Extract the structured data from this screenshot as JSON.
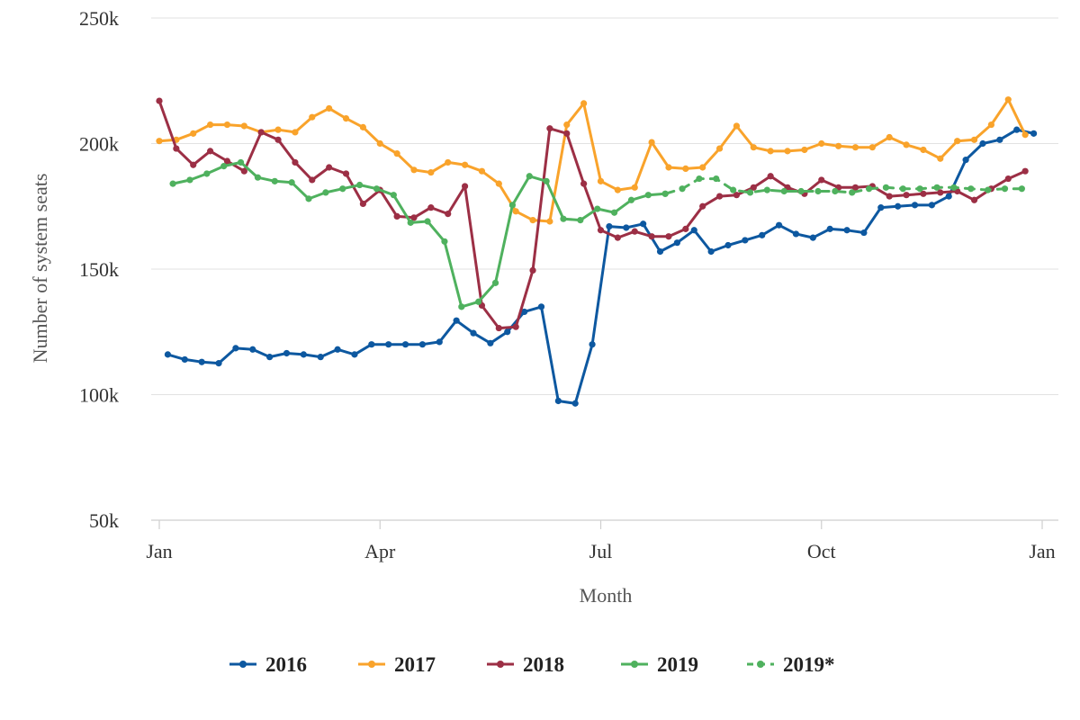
{
  "chart_data": {
    "type": "line",
    "xlabel": "Month",
    "ylabel": "Number of system seats",
    "x_ticks": [
      "Jan",
      "Apr",
      "Jul",
      "Oct",
      "Jan"
    ],
    "y_ticks": [
      "50k",
      "100k",
      "150k",
      "200k",
      "250k"
    ],
    "ylim": [
      50000,
      250000
    ],
    "xlim_weeks": [
      0,
      52
    ],
    "grid": "horizontal",
    "legend_position": "bottom",
    "series": [
      {
        "name": "2016",
        "color": "#0d58a0",
        "style": "solid",
        "x": [
          0.5,
          1.5,
          2.5,
          3.5,
          4.5,
          5.5,
          6.5,
          7.5,
          8.5,
          9.5,
          10.5,
          11.5,
          12.5,
          13.5,
          14.5,
          15.5,
          16.5,
          17.5,
          18.5,
          19.5,
          20.5,
          21.5,
          22.5,
          23.5,
          24.5,
          25.5,
          26.5,
          27.5,
          28.5,
          29.5,
          30.5,
          31.5,
          32.5,
          33.5,
          34.5,
          35.5,
          36.5,
          37.5,
          38.5,
          39.5,
          40.5,
          41.5,
          42.5,
          43.5,
          44.5,
          45.5,
          46.5,
          47.5,
          48.5,
          49.5,
          50.5,
          51.5
        ],
        "values": [
          116000,
          114000,
          113000,
          112500,
          118500,
          118000,
          115000,
          116500,
          116000,
          115000,
          118000,
          116000,
          120000,
          120000,
          120000,
          120000,
          121000,
          129500,
          124500,
          120500,
          125000,
          133000,
          135000,
          97500,
          96500,
          120000,
          167000,
          166500,
          168000,
          157000,
          160500,
          165500,
          157000,
          159500,
          161500,
          163500,
          167500,
          164000,
          162500,
          166000,
          165500,
          164500,
          174500,
          175000,
          175500,
          175500,
          179000,
          193500,
          200000,
          201500,
          205500,
          204000
        ]
      },
      {
        "name": "2017",
        "color": "#f9a32b",
        "style": "solid",
        "x": [
          0,
          1,
          2,
          3,
          4,
          5,
          6,
          7,
          8,
          9,
          10,
          11,
          12,
          13,
          14,
          15,
          16,
          17,
          18,
          19,
          20,
          21,
          22,
          23,
          24,
          25,
          26,
          27,
          28,
          29,
          30,
          31,
          32,
          33,
          34,
          35,
          36,
          37,
          38,
          39,
          40,
          41,
          42,
          43,
          44,
          45,
          46,
          47,
          48,
          49,
          50,
          51
        ],
        "values": [
          201000,
          201500,
          204000,
          207500,
          207500,
          207000,
          204500,
          205500,
          204500,
          210500,
          214000,
          210000,
          206500,
          200000,
          196000,
          189500,
          188500,
          192500,
          191500,
          189000,
          184000,
          173000,
          169500,
          169000,
          207500,
          216000,
          185000,
          181500,
          182500,
          200500,
          190500,
          190000,
          190500,
          198000,
          207000,
          198500,
          197000,
          197000,
          197500,
          200000,
          199000,
          198500,
          198500,
          202500,
          199500,
          197500,
          194000,
          201000,
          201500,
          207500,
          217500,
          203500
        ]
      },
      {
        "name": "2018",
        "color": "#9c2f45",
        "style": "solid",
        "x": [
          0,
          1,
          2,
          3,
          4,
          5,
          6,
          7,
          8,
          9,
          10,
          11,
          12,
          13,
          14,
          15,
          16,
          17,
          18,
          19,
          20,
          21,
          22,
          23,
          24,
          25,
          26,
          27,
          28,
          29,
          30,
          31,
          32,
          33,
          34,
          35,
          36,
          37,
          38,
          39,
          40,
          41,
          42,
          43,
          44,
          45,
          46,
          47,
          48,
          49,
          50,
          51
        ],
        "values": [
          217000,
          198000,
          191500,
          197000,
          193000,
          189000,
          204500,
          201500,
          192500,
          185500,
          190500,
          188000,
          176000,
          181500,
          171000,
          170500,
          174500,
          172000,
          183000,
          135500,
          126500,
          127000,
          149500,
          206000,
          204000,
          184000,
          165500,
          162500,
          165000,
          163000,
          163000,
          166000,
          175000,
          179000,
          179500,
          182500,
          187000,
          182500,
          180000,
          185500,
          182500,
          182500,
          183000,
          179000,
          179500,
          180000,
          180500,
          181000,
          177500,
          182000,
          186000,
          189000
        ]
      },
      {
        "name": "2019",
        "color": "#4fb15e",
        "style": "solid",
        "x": [
          0.8,
          1.8,
          2.8,
          3.8,
          4.8,
          5.8,
          6.8,
          7.8,
          8.8,
          9.8,
          10.8,
          11.8,
          12.8,
          13.8,
          14.8,
          15.8,
          16.8,
          17.8,
          18.8,
          19.8,
          20.8,
          21.8,
          22.8,
          23.8,
          24.8,
          25.8,
          26.8,
          27.8,
          28.8,
          29.8
        ],
        "values": [
          184000,
          185500,
          188000,
          191000,
          192500,
          186500,
          185000,
          184500,
          178000,
          180500,
          182000,
          183500,
          182000,
          179500,
          168500,
          169000,
          161000,
          135000,
          137000,
          144500,
          175500,
          187000,
          185000,
          170000,
          169500,
          174000,
          172500,
          177500,
          179500,
          180000
        ]
      },
      {
        "name": "2019*",
        "color": "#4fb15e",
        "style": "dashed",
        "x": [
          29.8,
          30.8,
          31.8,
          32.8,
          33.8,
          34.8,
          35.8,
          36.8,
          37.8,
          38.8,
          39.8,
          40.8,
          41.8,
          42.8,
          43.8,
          44.8,
          45.8,
          46.8,
          47.8,
          48.8,
          49.8,
          50.8
        ],
        "values": [
          180000,
          182000,
          186000,
          186000,
          181500,
          180500,
          181500,
          181000,
          181000,
          181000,
          181000,
          180500,
          182000,
          182500,
          182000,
          182000,
          182500,
          182500,
          182000,
          181500,
          182000,
          182000
        ]
      }
    ]
  }
}
